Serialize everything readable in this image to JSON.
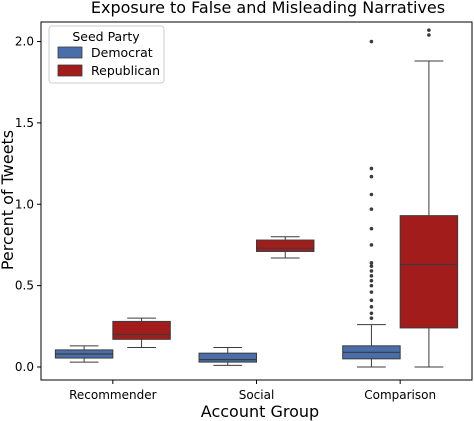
{
  "chart_data": {
    "type": "box",
    "title": "Exposure to False and Misleading Narratives",
    "xlabel": "Account Group",
    "ylabel": "Percent of Tweets",
    "categories": [
      "Recommender",
      "Social",
      "Comparison"
    ],
    "ylim": [
      -0.08,
      2.12
    ],
    "yticks": [
      0.0,
      0.5,
      1.0,
      1.5,
      2.0
    ],
    "ytick_labels": [
      "0.0",
      "0.5",
      "1.0",
      "1.5",
      "2.0"
    ],
    "grid": false,
    "legend": {
      "title": "Seed Party",
      "position": "top-left",
      "entries": [
        "Democrat",
        "Republican"
      ]
    },
    "series": [
      {
        "name": "Democrat",
        "color": "#4a6ea9",
        "boxes": [
          {
            "category": "Recommender",
            "whisker_low": 0.03,
            "q1": 0.055,
            "median": 0.08,
            "q3": 0.105,
            "whisker_high": 0.13,
            "outliers": []
          },
          {
            "category": "Social",
            "whisker_low": 0.01,
            "q1": 0.03,
            "median": 0.045,
            "q3": 0.085,
            "whisker_high": 0.12,
            "outliers": []
          },
          {
            "category": "Comparison",
            "whisker_low": 0.0,
            "q1": 0.05,
            "median": 0.09,
            "q3": 0.13,
            "whisker_high": 0.26,
            "outliers": [
              0.3,
              0.33,
              0.37,
              0.41,
              0.46,
              0.5,
              0.53,
              0.56,
              0.59,
              0.62,
              0.64,
              0.75,
              0.85,
              0.97,
              1.06,
              1.17,
              1.22,
              2.0
            ]
          }
        ]
      },
      {
        "name": "Republican",
        "color": "#a31c1c",
        "boxes": [
          {
            "category": "Recommender",
            "whisker_low": 0.12,
            "q1": 0.17,
            "median": 0.2,
            "q3": 0.28,
            "whisker_high": 0.3,
            "outliers": []
          },
          {
            "category": "Social",
            "whisker_low": 0.67,
            "q1": 0.71,
            "median": 0.73,
            "q3": 0.78,
            "whisker_high": 0.8,
            "outliers": []
          },
          {
            "category": "Comparison",
            "whisker_low": 0.0,
            "q1": 0.24,
            "median": 0.63,
            "q3": 0.93,
            "whisker_high": 1.88,
            "outliers": [
              2.04,
              2.07
            ]
          }
        ]
      }
    ]
  }
}
